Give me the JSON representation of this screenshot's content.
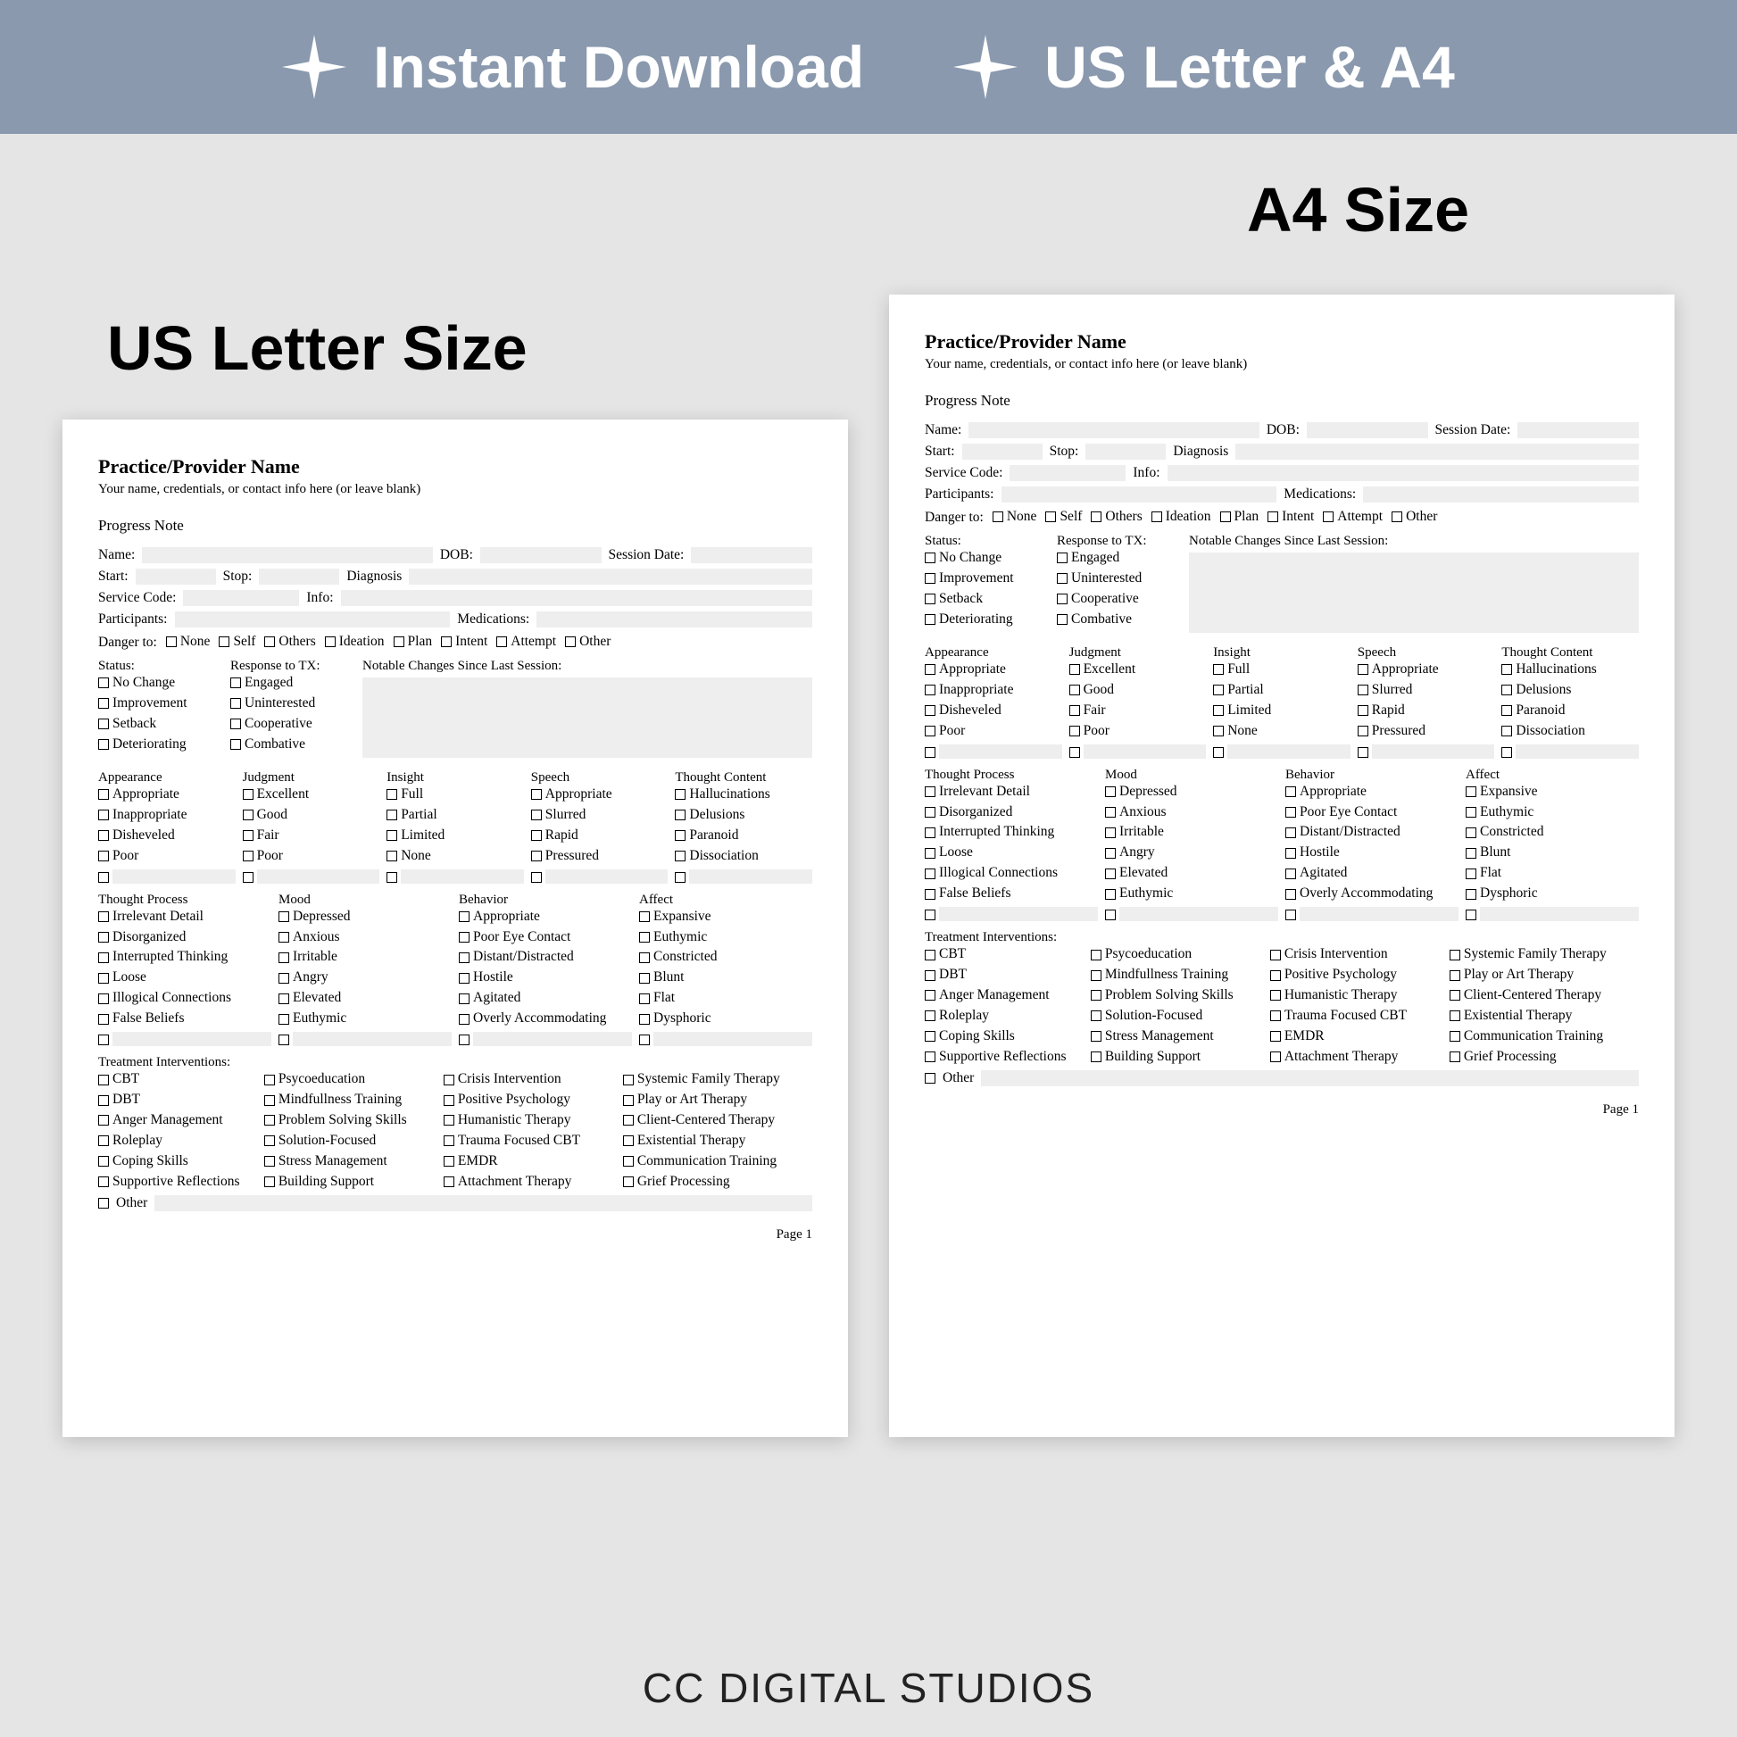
{
  "colors": {
    "banner_bg": "#8a99ae",
    "page_bg": "#e5e5e5",
    "sheet_bg": "#ffffff",
    "fill_bg": "#eeeeee"
  },
  "banner": {
    "left": "Instant Download",
    "right": "US Letter & A4"
  },
  "captions": {
    "us": "US Letter Size",
    "a4": "A4 Size"
  },
  "brand": "CC DIGITAL STUDIOS",
  "doc": {
    "provider_name": "Practice/Provider Name",
    "provider_sub": "Your name, credentials, or contact info here (or leave blank)",
    "note_title": "Progress Note",
    "labels": {
      "name": "Name:",
      "dob": "DOB:",
      "session_date": "Session Date:",
      "start": "Start:",
      "stop": "Stop:",
      "diagnosis": "Diagnosis",
      "service_code": "Service Code:",
      "info": "Info:",
      "participants": "Participants:",
      "medications": "Medications:",
      "danger": "Danger to:",
      "status": "Status:",
      "response_tx": "Response to TX:",
      "notable": "Notable Changes Since Last Session:",
      "page": "Page 1"
    },
    "danger": [
      "None",
      "Self",
      "Others",
      "Ideation",
      "Plan",
      "Intent",
      "Attempt",
      "Other"
    ],
    "status": [
      "No Change",
      "Improvement",
      "Setback",
      "Deteriorating"
    ],
    "response": [
      "Engaged",
      "Uninterested",
      "Cooperative",
      "Combative"
    ],
    "obs": {
      "cols": [
        {
          "h": "Appearance",
          "items": [
            "Appropriate",
            "Inappropriate",
            "Disheveled",
            "Poor"
          ]
        },
        {
          "h": "Judgment",
          "items": [
            "Excellent",
            "Good",
            "Fair",
            "Poor"
          ]
        },
        {
          "h": "Insight",
          "items": [
            "Full",
            "Partial",
            "Limited",
            "None"
          ]
        },
        {
          "h": "Speech",
          "items": [
            "Appropriate",
            "Slurred",
            "Rapid",
            "Pressured"
          ]
        },
        {
          "h": "Thought Content",
          "items": [
            "Hallucinations",
            "Delusions",
            "Paranoid",
            "Dissociation"
          ]
        }
      ]
    },
    "obs2": {
      "cols": [
        {
          "h": "Thought Process",
          "items": [
            "Irrelevant Detail",
            "Disorganized",
            "Interrupted Thinking",
            "Loose",
            "Illogical Connections",
            "False Beliefs"
          ]
        },
        {
          "h": "Mood",
          "items": [
            "Depressed",
            "Anxious",
            "Irritable",
            "Angry",
            "Elevated",
            "Euthymic"
          ]
        },
        {
          "h": "Behavior",
          "items": [
            "Appropriate",
            "Poor Eye Contact",
            "Distant/Distracted",
            "Hostile",
            "Agitated",
            "Overly Accommodating"
          ]
        },
        {
          "h": "Affect",
          "items": [
            "Expansive",
            "Euthymic",
            "Constricted",
            "Blunt",
            "Flat",
            "Dysphoric"
          ]
        }
      ]
    },
    "tx": {
      "title": "Treatment Interventions:",
      "rows": [
        [
          "CBT",
          "Psycoeducation",
          "Crisis Intervention",
          "Systemic Family Therapy"
        ],
        [
          "DBT",
          "Mindfullness Training",
          "Positive Psychology",
          "Play or Art Therapy"
        ],
        [
          "Anger Management",
          "Problem Solving Skills",
          "Humanistic Therapy",
          "Client-Centered Therapy"
        ],
        [
          "Roleplay",
          "Solution-Focused",
          "Trauma Focused CBT",
          "Existential Therapy"
        ],
        [
          "Coping Skills",
          "Stress Management",
          "EMDR",
          "Communication Training"
        ],
        [
          "Supportive Reflections",
          "Building Support",
          "Attachment Therapy",
          "Grief Processing"
        ]
      ],
      "other": "Other"
    }
  }
}
